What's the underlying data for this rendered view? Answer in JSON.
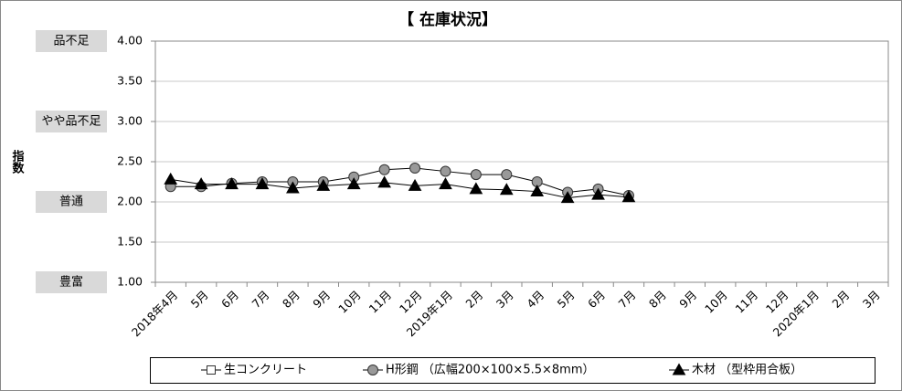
{
  "chart_data": {
    "type": "line",
    "title": "【 在庫状況】",
    "y_label": "指数",
    "categories": [
      "2018年4月",
      "5月",
      "6月",
      "7月",
      "8月",
      "9月",
      "10月",
      "11月",
      "12月",
      "2019年1月",
      "2月",
      "3月",
      "4月",
      "5月",
      "6月",
      "7月",
      "8月",
      "9月",
      "10月",
      "11月",
      "12月",
      "2020年1月",
      "2月",
      "3月"
    ],
    "series": [
      {
        "name": "生コンクリート",
        "color": "#ffffff",
        "marker": "square",
        "values": [
          null,
          null,
          null,
          null,
          null,
          null,
          null,
          null,
          null,
          null,
          null,
          null,
          null,
          null,
          null,
          null,
          null,
          null,
          null,
          null,
          null,
          null,
          null,
          null
        ]
      },
      {
        "name": "H形鋼 （広幅200×100×5.5×8mm）",
        "color": "#999999",
        "marker": "circle",
        "values": [
          2.19,
          2.19,
          2.23,
          2.25,
          2.25,
          2.25,
          2.31,
          2.4,
          2.42,
          2.38,
          2.34,
          2.34,
          2.25,
          2.12,
          2.16,
          2.08,
          null,
          null,
          null,
          null,
          null,
          null,
          null,
          null
        ]
      },
      {
        "name": "木材 （型枠用合板）",
        "color": "#000000",
        "marker": "triangle",
        "values": [
          2.28,
          2.22,
          2.22,
          2.22,
          2.17,
          2.2,
          2.22,
          2.24,
          2.2,
          2.22,
          2.16,
          2.15,
          2.13,
          2.05,
          2.09,
          2.06,
          null,
          null,
          null,
          null,
          null,
          null,
          null,
          null
        ]
      }
    ],
    "ylim": [
      1,
      4
    ],
    "yticks": [
      {
        "value": 1,
        "label": "1.00"
      },
      {
        "value": 1.5,
        "label": "1.50"
      },
      {
        "value": 2,
        "label": "2.00"
      },
      {
        "value": 2.5,
        "label": "2.50"
      },
      {
        "value": 3,
        "label": "3.00"
      },
      {
        "value": 3.5,
        "label": "3.50"
      },
      {
        "value": 4,
        "label": "4.00"
      }
    ],
    "y_category_labels": [
      {
        "value": 4,
        "label": "品不足"
      },
      {
        "value": 3,
        "label": "やや品不足"
      },
      {
        "value": 2,
        "label": "普通"
      },
      {
        "value": 1,
        "label": "豊富"
      }
    ],
    "grid": true,
    "legend": "bottom"
  }
}
